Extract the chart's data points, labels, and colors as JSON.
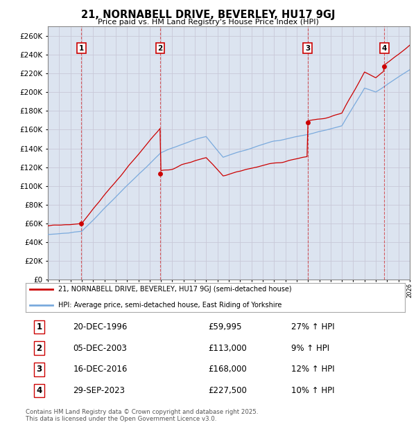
{
  "title": "21, NORNABELL DRIVE, BEVERLEY, HU17 9GJ",
  "subtitle": "Price paid vs. HM Land Registry's House Price Index (HPI)",
  "ylim": [
    0,
    270000
  ],
  "yticks": [
    0,
    20000,
    40000,
    60000,
    80000,
    100000,
    120000,
    140000,
    160000,
    180000,
    200000,
    220000,
    240000,
    260000
  ],
  "sale_dates_dec": [
    1996.96,
    2003.92,
    2016.96,
    2023.75
  ],
  "sale_prices": [
    59995,
    113000,
    168000,
    227500
  ],
  "sale_labels": [
    "1",
    "2",
    "3",
    "4"
  ],
  "sale_label_info": [
    {
      "num": "1",
      "date": "20-DEC-1996",
      "price": "£59,995",
      "hpi": "27% ↑ HPI"
    },
    {
      "num": "2",
      "date": "05-DEC-2003",
      "price": "£113,000",
      "hpi": "9% ↑ HPI"
    },
    {
      "num": "3",
      "date": "16-DEC-2016",
      "price": "£168,000",
      "hpi": "12% ↑ HPI"
    },
    {
      "num": "4",
      "date": "29-SEP-2023",
      "price": "£227,500",
      "hpi": "10% ↑ HPI"
    }
  ],
  "legend_line1": "21, NORNABELL DRIVE, BEVERLEY, HU17 9GJ (semi-detached house)",
  "legend_line2": "HPI: Average price, semi-detached house, East Riding of Yorkshire",
  "footer_line1": "Contains HM Land Registry data © Crown copyright and database right 2025.",
  "footer_line2": "This data is licensed under the Open Government Licence v3.0.",
  "red_line_color": "#cc0000",
  "blue_line_color": "#7aaadd",
  "grid_color": "#c8c8d8",
  "bg_color": "#ffffff",
  "plot_bg_color": "#dce4f0"
}
